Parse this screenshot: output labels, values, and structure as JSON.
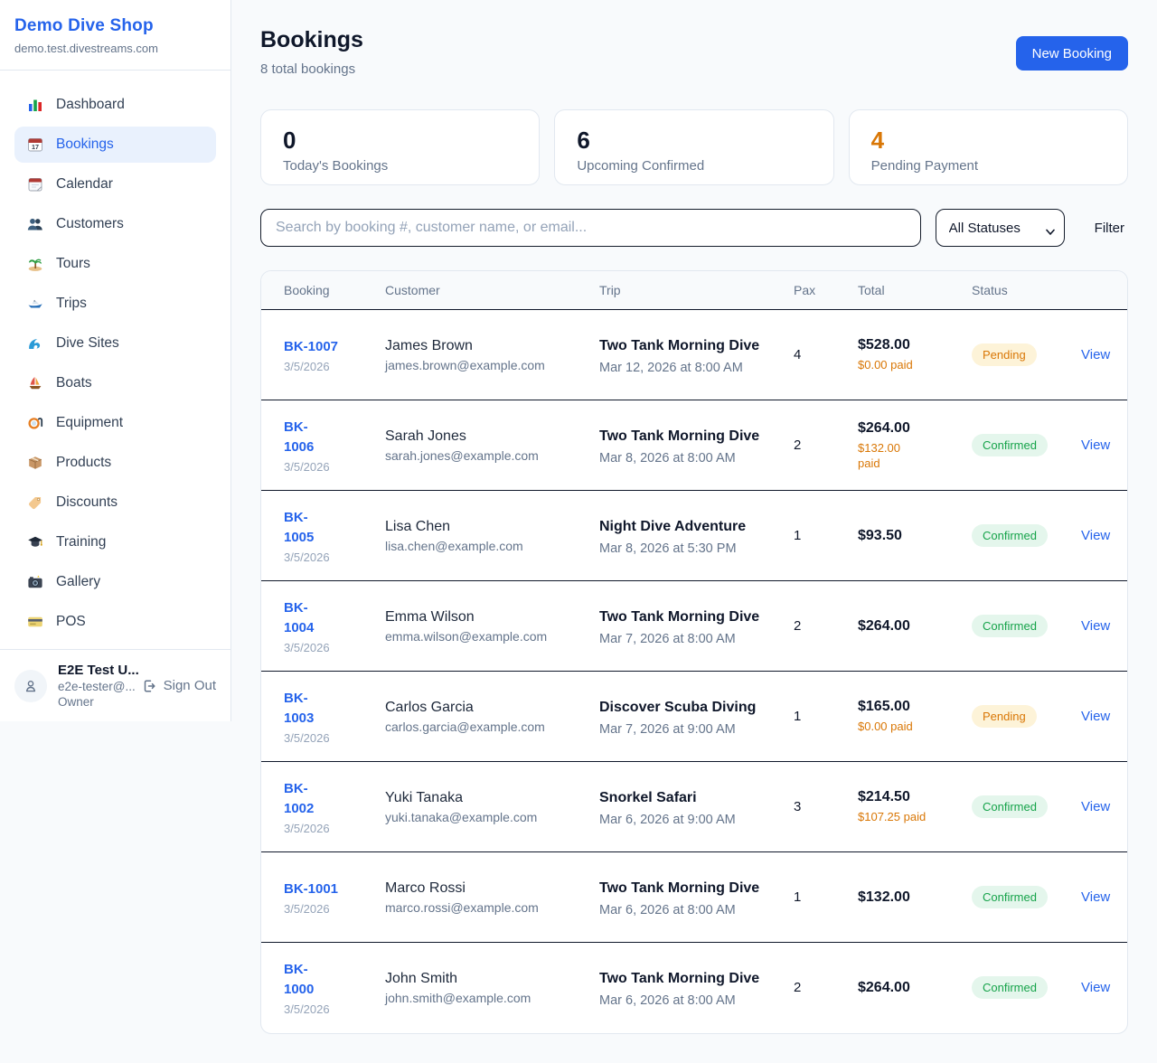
{
  "sidebar": {
    "brand": {
      "name": "Demo Dive Shop",
      "domain": "demo.test.divestreams.com"
    },
    "items": [
      {
        "label": "Dashboard",
        "icon": "bar-chart-icon",
        "active": false
      },
      {
        "label": "Bookings",
        "icon": "calendar-17-icon",
        "active": true
      },
      {
        "label": "Calendar",
        "icon": "calendar-tear-icon",
        "active": false
      },
      {
        "label": "Customers",
        "icon": "people-icon",
        "active": false
      },
      {
        "label": "Tours",
        "icon": "island-icon",
        "active": false
      },
      {
        "label": "Trips",
        "icon": "speedboat-icon",
        "active": false
      },
      {
        "label": "Dive Sites",
        "icon": "wave-icon",
        "active": false
      },
      {
        "label": "Boats",
        "icon": "sailboat-icon",
        "active": false
      },
      {
        "label": "Equipment",
        "icon": "dive-mask-icon",
        "active": false
      },
      {
        "label": "Products",
        "icon": "package-icon",
        "active": false
      },
      {
        "label": "Discounts",
        "icon": "tag-icon",
        "active": false
      },
      {
        "label": "Training",
        "icon": "grad-cap-icon",
        "active": false
      },
      {
        "label": "Gallery",
        "icon": "camera-icon",
        "active": false
      },
      {
        "label": "POS",
        "icon": "credit-card-icon",
        "active": false
      }
    ],
    "user": {
      "name": "E2E Test U...",
      "email": "e2e-tester@...",
      "role": "Owner",
      "signout_label": "Sign Out"
    }
  },
  "header": {
    "title": "Bookings",
    "subtitle": "8 total bookings",
    "new_booking_label": "New Booking"
  },
  "stats": [
    {
      "value": "0",
      "label": "Today's Bookings",
      "color": "#0f172a"
    },
    {
      "value": "6",
      "label": "Upcoming Confirmed",
      "color": "#0f172a"
    },
    {
      "value": "4",
      "label": "Pending Payment",
      "color": "#d97706"
    }
  ],
  "filters": {
    "search_placeholder": "Search by booking #, customer name, or email...",
    "status_selected": "All Statuses",
    "filter_label": "Filter"
  },
  "table": {
    "columns": [
      "Booking",
      "Customer",
      "Trip",
      "Pax",
      "Total",
      "Status",
      ""
    ],
    "rows": [
      {
        "booking_lines": [
          "BK-1007"
        ],
        "date": "3/5/2026",
        "customer": "James Brown",
        "email": "james.brown@example.com",
        "trip": "Two Tank Morning Dive",
        "trip_datetime": "Mar 12, 2026 at 8:00 AM",
        "pax": "4",
        "total": "$528.00",
        "paid_lines": [
          "$0.00 paid"
        ],
        "status": "Pending",
        "action": "View"
      },
      {
        "booking_lines": [
          "BK-",
          "1006"
        ],
        "date": "3/5/2026",
        "customer": "Sarah Jones",
        "email": "sarah.jones@example.com",
        "trip": "Two Tank Morning Dive",
        "trip_datetime": "Mar 8, 2026 at 8:00 AM",
        "pax": "2",
        "total": "$264.00",
        "paid_lines": [
          "$132.00",
          "paid"
        ],
        "status": "Confirmed",
        "action": "View"
      },
      {
        "booking_lines": [
          "BK-",
          "1005"
        ],
        "date": "3/5/2026",
        "customer": "Lisa Chen",
        "email": "lisa.chen@example.com",
        "trip": "Night Dive Adventure",
        "trip_datetime": "Mar 8, 2026 at 5:30 PM",
        "pax": "1",
        "total": "$93.50",
        "paid_lines": [],
        "status": "Confirmed",
        "action": "View"
      },
      {
        "booking_lines": [
          "BK-",
          "1004"
        ],
        "date": "3/5/2026",
        "customer": "Emma Wilson",
        "email": "emma.wilson@example.com",
        "trip": "Two Tank Morning Dive",
        "trip_datetime": "Mar 7, 2026 at 8:00 AM",
        "pax": "2",
        "total": "$264.00",
        "paid_lines": [],
        "status": "Confirmed",
        "action": "View"
      },
      {
        "booking_lines": [
          "BK-",
          "1003"
        ],
        "date": "3/5/2026",
        "customer": "Carlos Garcia",
        "email": "carlos.garcia@example.com",
        "trip": "Discover Scuba Diving",
        "trip_datetime": "Mar 7, 2026 at 9:00 AM",
        "pax": "1",
        "total": "$165.00",
        "paid_lines": [
          "$0.00 paid"
        ],
        "status": "Pending",
        "action": "View"
      },
      {
        "booking_lines": [
          "BK-",
          "1002"
        ],
        "date": "3/5/2026",
        "customer": "Yuki Tanaka",
        "email": "yuki.tanaka@example.com",
        "trip": "Snorkel Safari",
        "trip_datetime": "Mar 6, 2026 at 9:00 AM",
        "pax": "3",
        "total": "$214.50",
        "paid_lines": [
          "$107.25 paid"
        ],
        "status": "Confirmed",
        "action": "View"
      },
      {
        "booking_lines": [
          "BK-1001"
        ],
        "date": "3/5/2026",
        "customer": "Marco Rossi",
        "email": "marco.rossi@example.com",
        "trip": "Two Tank Morning Dive",
        "trip_datetime": "Mar 6, 2026 at 8:00 AM",
        "pax": "1",
        "total": "$132.00",
        "paid_lines": [],
        "status": "Confirmed",
        "action": "View"
      },
      {
        "booking_lines": [
          "BK-",
          "1000"
        ],
        "date": "3/5/2026",
        "customer": "John Smith",
        "email": "john.smith@example.com",
        "trip": "Two Tank Morning Dive",
        "trip_datetime": "Mar 6, 2026 at 8:00 AM",
        "pax": "2",
        "total": "$264.00",
        "paid_lines": [],
        "status": "Confirmed",
        "action": "View"
      }
    ]
  },
  "colors": {
    "accent_blue": "#2563eb",
    "orange": "#d97706",
    "pending_text": "#d97706",
    "pending_bg": "#fdf3d8",
    "confirmed_text": "#16a34a",
    "confirmed_bg": "#e4f6ec"
  }
}
